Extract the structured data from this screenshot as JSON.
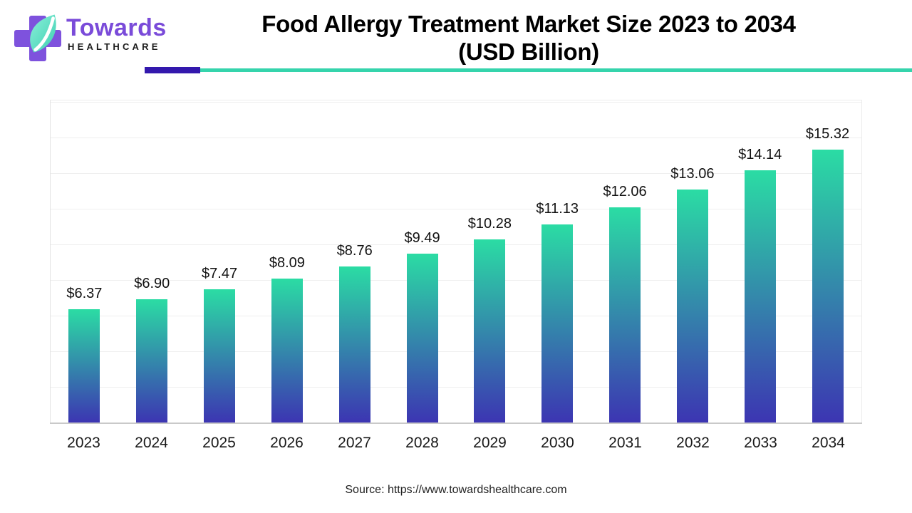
{
  "brand": {
    "name": "Towards",
    "subname": "HEALTHCARE"
  },
  "header": {
    "title_line1": "Food Allergy Treatment Market Size 2023 to 2034",
    "title_line2": "(USD Billion)"
  },
  "colors": {
    "accent_purple": "#3318AD",
    "accent_teal": "#35D4AC",
    "logo_cross_purple": "#7E52DD",
    "logo_leaf_teal": "#4ADFC2",
    "bar_gradient_top": "#2BDCA4",
    "bar_gradient_bottom": "#3C35B2",
    "gridline": "#efefef",
    "axis_line": "#c9c9c9"
  },
  "chart_data": {
    "type": "bar",
    "title": "Food Allergy Treatment Market Size 2023 to 2034 (USD Billion)",
    "categories": [
      "2023",
      "2024",
      "2025",
      "2026",
      "2027",
      "2028",
      "2029",
      "2030",
      "2031",
      "2032",
      "2033",
      "2034"
    ],
    "values": [
      6.37,
      6.9,
      7.47,
      8.09,
      8.76,
      9.49,
      10.28,
      11.13,
      12.06,
      13.06,
      14.14,
      15.32
    ],
    "value_labels": [
      "$6.37",
      "$6.90",
      "$7.47",
      "$8.09",
      "$8.76",
      "$9.49",
      "$10.28",
      "$11.13",
      "$12.06",
      "$13.06",
      "$14.14",
      "$15.32"
    ],
    "xlabel": "",
    "ylabel": "",
    "ylim": [
      0,
      18.12
    ],
    "grid": true,
    "gridline_step_units": 2,
    "legend_position": "none"
  },
  "footer": {
    "source": "Source: https://www.towardshealthcare.com"
  }
}
